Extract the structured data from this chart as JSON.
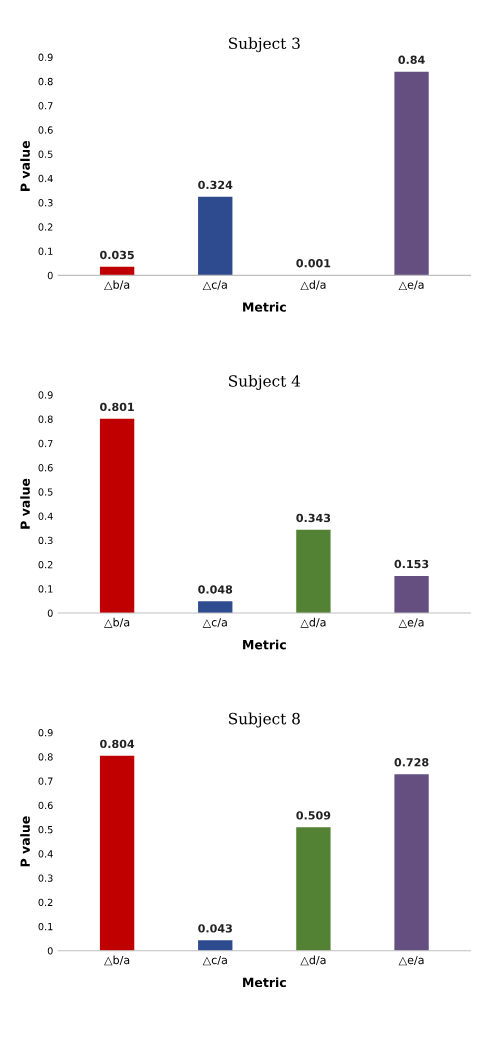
{
  "chart_data": [
    {
      "type": "bar",
      "title": "Subject 3",
      "xlabel": "Metric",
      "ylabel": "P value",
      "categories": [
        "△b/a",
        "△c/a",
        "△d/a",
        "△e/a"
      ],
      "values": [
        0.035,
        0.324,
        0.001,
        0.84
      ],
      "colors": [
        "#c00000",
        "#2f4b8f",
        "#548235",
        "#654f80"
      ],
      "data_labels": true,
      "ylim": [
        0,
        0.9
      ],
      "yticks": [
        0,
        0.1,
        0.2,
        0.3,
        0.4,
        0.5,
        0.6,
        0.7,
        0.8,
        0.9
      ],
      "grid": false
    },
    {
      "type": "bar",
      "title": "Subject 4",
      "xlabel": "Metric",
      "ylabel": "P value",
      "categories": [
        "△b/a",
        "△c/a",
        "△d/a",
        "△e/a"
      ],
      "values": [
        0.801,
        0.048,
        0.343,
        0.153
      ],
      "colors": [
        "#c00000",
        "#2f4b8f",
        "#548235",
        "#654f80"
      ],
      "data_labels": true,
      "ylim": [
        0,
        0.9
      ],
      "yticks": [
        0,
        0.1,
        0.2,
        0.3,
        0.4,
        0.5,
        0.6,
        0.7,
        0.8,
        0.9
      ],
      "grid": false
    },
    {
      "type": "bar",
      "title": "Subject 8",
      "xlabel": "Metric",
      "ylabel": "P value",
      "categories": [
        "△b/a",
        "△c/a",
        "△d/a",
        "△e/a"
      ],
      "values": [
        0.804,
        0.043,
        0.509,
        0.728
      ],
      "colors": [
        "#c00000",
        "#2f4b8f",
        "#548235",
        "#654f80"
      ],
      "data_labels": true,
      "ylim": [
        0,
        0.9
      ],
      "yticks": [
        0,
        0.1,
        0.2,
        0.3,
        0.4,
        0.5,
        0.6,
        0.7,
        0.8,
        0.9
      ],
      "grid": false
    }
  ]
}
